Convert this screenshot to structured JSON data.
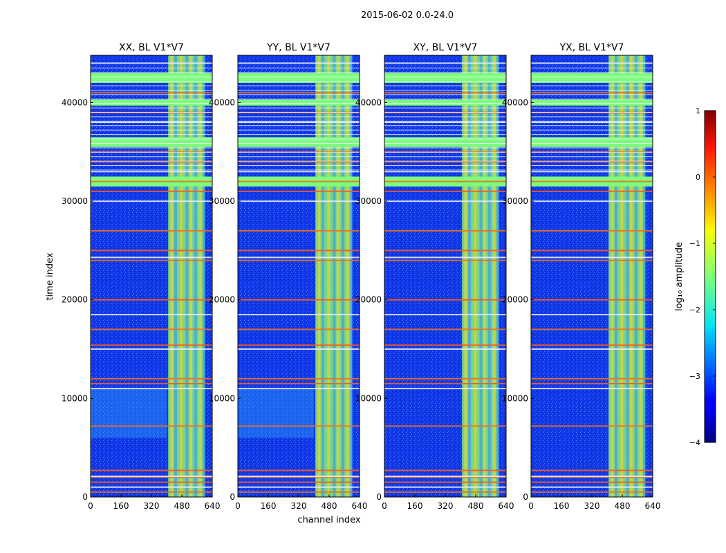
{
  "chart_data": {
    "type": "heatmap",
    "title": "2015-06-02 0.0-24.0",
    "xlabel": "channel index",
    "ylabel": "time index",
    "xlim": [
      0,
      640
    ],
    "ylim": [
      0,
      44800
    ],
    "xticks": [
      0,
      160,
      320,
      480,
      640
    ],
    "yticks": [
      0,
      10000,
      20000,
      30000,
      40000
    ],
    "panels": [
      {
        "title": "XX, BL V1*V7"
      },
      {
        "title": "YY, BL V1*V7"
      },
      {
        "title": "XY, BL V1*V7"
      },
      {
        "title": "YX, BL V1*V7"
      }
    ],
    "colorbar": {
      "label": "log₁₀ amplitude",
      "colormap": "jet",
      "vmin": -4,
      "vmax": 1,
      "ticks": [
        "−4",
        "−3",
        "−2",
        "−1",
        "0",
        "1"
      ]
    },
    "flagged_channel_band": [
      408,
      600
    ],
    "flagged_time_rows": [
      500,
      1000,
      1500,
      2000,
      2100,
      2700,
      7200,
      11000,
      11500,
      12000,
      15000,
      15400,
      17000,
      18500,
      20000,
      24000,
      24300,
      25000,
      27000,
      30000,
      31000,
      32000,
      33000,
      34000,
      35000,
      38000,
      39000,
      41000,
      44000
    ],
    "saturated_blocks": [
      [
        31500,
        32500
      ],
      [
        35500,
        36500
      ],
      [
        39700,
        40300
      ],
      [
        42000,
        43000
      ]
    ]
  },
  "colors": {
    "background_low": "#0a2fd8",
    "flag_band": "#7dfc7d",
    "hot_row": "#f07020"
  }
}
